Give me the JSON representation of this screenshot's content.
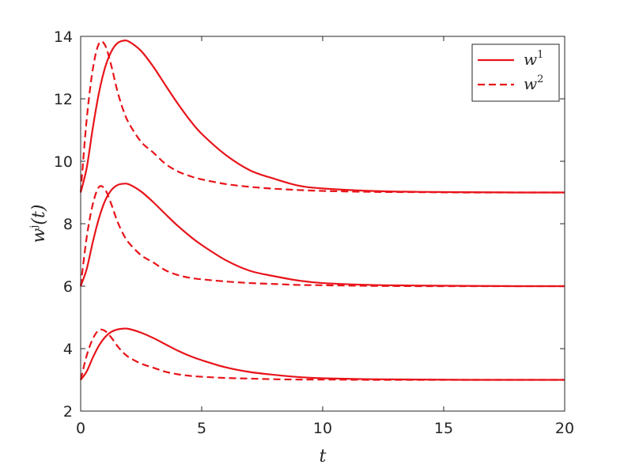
{
  "chart_data": {
    "type": "line",
    "xlabel": "t",
    "ylabel": "w^j(t)",
    "xlim": [
      0,
      20
    ],
    "ylim": [
      2,
      14
    ],
    "xticks": [
      "0",
      "5",
      "10",
      "15",
      "20"
    ],
    "yticks": [
      "2",
      "4",
      "6",
      "8",
      "10",
      "12",
      "14"
    ],
    "grid": false,
    "legend_position": "top-right",
    "legend": [
      {
        "name": "w",
        "sup": "1",
        "style": "solid"
      },
      {
        "name": "w",
        "sup": "2",
        "style": "dashed"
      }
    ],
    "color": "#e8141a",
    "x": [
      0,
      0.25,
      0.5,
      0.75,
      1,
      1.25,
      1.5,
      1.75,
      2,
      2.5,
      3,
      3.5,
      4,
      4.5,
      5,
      6,
      7,
      8,
      9,
      10,
      12,
      14,
      16,
      18,
      20
    ],
    "series": [
      {
        "group": 1,
        "style": "solid",
        "values": [
          9.0,
          9.79,
          11.06,
          12.17,
          12.98,
          13.49,
          13.77,
          13.86,
          13.83,
          13.53,
          13.03,
          12.44,
          11.86,
          11.33,
          10.88,
          10.2,
          9.71,
          9.44,
          9.22,
          9.13,
          9.05,
          9.02,
          9.01,
          9.0,
          9.0
        ]
      },
      {
        "group": 1,
        "style": "dashed",
        "values": [
          9.0,
          11.35,
          12.94,
          13.76,
          13.73,
          13.11,
          12.3,
          11.66,
          11.21,
          10.62,
          10.28,
          9.92,
          9.68,
          9.53,
          9.42,
          9.27,
          9.18,
          9.12,
          9.08,
          9.05,
          9.02,
          9.01,
          9.0,
          9.0,
          9.0
        ]
      },
      {
        "group": 2,
        "style": "solid",
        "values": [
          6.0,
          6.55,
          7.41,
          8.16,
          8.72,
          9.06,
          9.23,
          9.28,
          9.26,
          9.03,
          8.69,
          8.31,
          7.94,
          7.61,
          7.32,
          6.83,
          6.49,
          6.32,
          6.18,
          6.1,
          6.04,
          6.02,
          6.01,
          6.0,
          6.0
        ]
      },
      {
        "group": 2,
        "style": "dashed",
        "values": [
          6.0,
          7.57,
          8.62,
          9.17,
          9.11,
          8.66,
          8.11,
          7.68,
          7.38,
          6.99,
          6.76,
          6.51,
          6.36,
          6.27,
          6.22,
          6.15,
          6.1,
          6.07,
          6.04,
          6.03,
          6.01,
          6.0,
          6.0,
          6.0,
          6.0
        ]
      },
      {
        "group": 3,
        "style": "solid",
        "values": [
          3.0,
          3.27,
          3.71,
          4.09,
          4.36,
          4.53,
          4.61,
          4.64,
          4.63,
          4.51,
          4.34,
          4.14,
          3.94,
          3.77,
          3.63,
          3.4,
          3.25,
          3.16,
          3.09,
          3.05,
          3.02,
          3.01,
          3.0,
          3.0,
          3.0
        ]
      },
      {
        "group": 3,
        "style": "dashed",
        "values": [
          3.0,
          3.78,
          4.31,
          4.59,
          4.57,
          4.37,
          4.1,
          3.88,
          3.72,
          3.52,
          3.39,
          3.26,
          3.18,
          3.13,
          3.1,
          3.06,
          3.04,
          3.02,
          3.01,
          3.01,
          3.0,
          3.0,
          3.0,
          3.0,
          3.0
        ]
      }
    ]
  }
}
